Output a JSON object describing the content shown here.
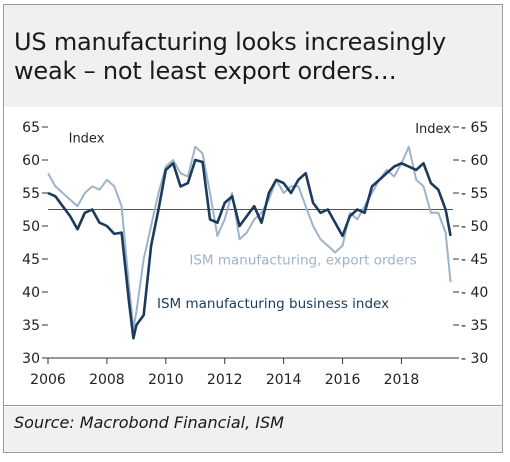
{
  "title": "US manufacturing looks increasingly weak – not least export orders…",
  "source": "Source: Macrobond Financial, ISM",
  "chart_data": {
    "type": "line",
    "title": "US manufacturing looks increasingly weak – not least export orders…",
    "left_axis_label": "Index",
    "right_axis_label": "Index",
    "ylim": [
      30,
      65
    ],
    "yticks": [
      30,
      35,
      40,
      45,
      50,
      55,
      60,
      65
    ],
    "xlim": [
      2006,
      2019.75
    ],
    "xticks": [
      2006,
      2008,
      2010,
      2012,
      2014,
      2016,
      2018
    ],
    "reference_line": 52.5,
    "grid": false,
    "colors": {
      "business": "#1b3a5c",
      "export": "#9fb3c8",
      "reference": "#555555"
    },
    "series": [
      {
        "name": "ISM manufacturing business index",
        "key": "business",
        "x": [
          2006.0,
          2006.25,
          2006.5,
          2006.75,
          2007.0,
          2007.25,
          2007.5,
          2007.75,
          2008.0,
          2008.25,
          2008.5,
          2008.75,
          2008.9,
          2009.0,
          2009.25,
          2009.5,
          2009.75,
          2010.0,
          2010.25,
          2010.5,
          2010.75,
          2011.0,
          2011.25,
          2011.5,
          2011.75,
          2012.0,
          2012.25,
          2012.5,
          2012.75,
          2013.0,
          2013.25,
          2013.5,
          2013.75,
          2014.0,
          2014.25,
          2014.5,
          2014.75,
          2015.0,
          2015.25,
          2015.5,
          2015.75,
          2016.0,
          2016.25,
          2016.5,
          2016.75,
          2017.0,
          2017.25,
          2017.5,
          2017.75,
          2018.0,
          2018.25,
          2018.5,
          2018.75,
          2019.0,
          2019.25,
          2019.5,
          2019.67
        ],
        "values": [
          55,
          54.5,
          53,
          51.5,
          49.5,
          52,
          52.5,
          50.5,
          50,
          48.8,
          49,
          38.5,
          33,
          35,
          36.5,
          47,
          52.5,
          58.5,
          59.5,
          56,
          56.5,
          60,
          59.7,
          51,
          50.5,
          53.5,
          54.5,
          50,
          51.5,
          53,
          50.5,
          55,
          57,
          56.5,
          55,
          57,
          58,
          53.5,
          52,
          52.5,
          50.5,
          48.5,
          51.5,
          52.5,
          52,
          56,
          57,
          58,
          59,
          59.5,
          59,
          58.5,
          59.5,
          56.5,
          55.5,
          52.5,
          48.5
        ]
      },
      {
        "name": "ISM manufacturing, export orders",
        "key": "export",
        "x": [
          2006.0,
          2006.25,
          2006.5,
          2006.75,
          2007.0,
          2007.25,
          2007.5,
          2007.75,
          2008.0,
          2008.25,
          2008.5,
          2008.75,
          2008.9,
          2009.0,
          2009.25,
          2009.5,
          2009.75,
          2010.0,
          2010.25,
          2010.5,
          2010.75,
          2011.0,
          2011.25,
          2011.5,
          2011.75,
          2012.0,
          2012.25,
          2012.5,
          2012.75,
          2013.0,
          2013.25,
          2013.5,
          2013.75,
          2014.0,
          2014.25,
          2014.5,
          2014.75,
          2015.0,
          2015.25,
          2015.5,
          2015.75,
          2016.0,
          2016.25,
          2016.5,
          2016.75,
          2017.0,
          2017.25,
          2017.5,
          2017.75,
          2018.0,
          2018.25,
          2018.5,
          2018.75,
          2019.0,
          2019.25,
          2019.5,
          2019.67
        ],
        "values": [
          58,
          56,
          55,
          54,
          53,
          55,
          56,
          55.5,
          57,
          56,
          53,
          41,
          34.5,
          37,
          45,
          50,
          55,
          59,
          60,
          58,
          57.5,
          62,
          61,
          55,
          48.5,
          51,
          55,
          48,
          49,
          51,
          52,
          54,
          57,
          55,
          56,
          56,
          53,
          50,
          48,
          47,
          46,
          47,
          52,
          51,
          53,
          55,
          57,
          58.5,
          57.5,
          59.5,
          62,
          57,
          56,
          52,
          52,
          49,
          41.5
        ]
      }
    ],
    "annotations": [
      {
        "text": "ISM manufacturing, export orders",
        "series": "export"
      },
      {
        "text": "ISM manufacturing business index",
        "series": "business"
      }
    ]
  }
}
